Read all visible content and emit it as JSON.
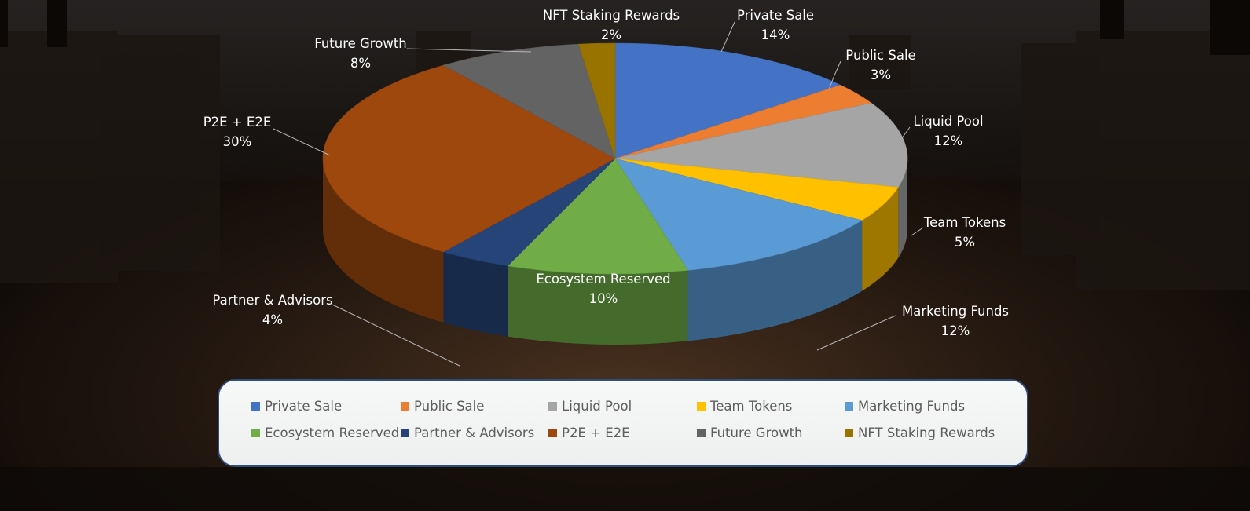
{
  "chart_data": {
    "type": "pie",
    "categories": [
      "Private Sale",
      "Public Sale",
      "Liquid Pool",
      "Team Tokens",
      "Marketing Funds",
      "Ecosystem Reserved",
      "Partner & Advisors",
      "P2E + E2E",
      "Future Growth",
      "NFT Staking Rewards"
    ],
    "values": [
      14,
      3,
      12,
      5,
      12,
      10,
      4,
      30,
      8,
      2
    ],
    "value_labels": [
      "14%",
      "3%",
      "12%",
      "5%",
      "12%",
      "10%",
      "4%",
      "30%",
      "8%",
      "2%"
    ],
    "colors": [
      "#4472c4",
      "#ed7d31",
      "#a5a5a5",
      "#ffc000",
      "#5b9bd5",
      "#70ad47",
      "#264478",
      "#9e480e",
      "#636363",
      "#997300"
    ],
    "unit": "%",
    "legend": "bottom",
    "style": "3d-exploded-none"
  },
  "legend": {
    "items": [
      {
        "label": "Private Sale",
        "color": "#4472c4"
      },
      {
        "label": "Public Sale",
        "color": "#ed7d31"
      },
      {
        "label": "Liquid Pool",
        "color": "#a5a5a5"
      },
      {
        "label": "Team Tokens",
        "color": "#ffc000"
      },
      {
        "label": "Marketing Funds",
        "color": "#5b9bd5"
      },
      {
        "label": "Ecosystem Reserved",
        "color": "#70ad47"
      },
      {
        "label": "Partner & Advisors",
        "color": "#264478"
      },
      {
        "label": "P2E + E2E",
        "color": "#9e480e"
      },
      {
        "label": "Future Growth",
        "color": "#636363"
      },
      {
        "label": "NFT Staking Rewards",
        "color": "#997300"
      }
    ]
  }
}
